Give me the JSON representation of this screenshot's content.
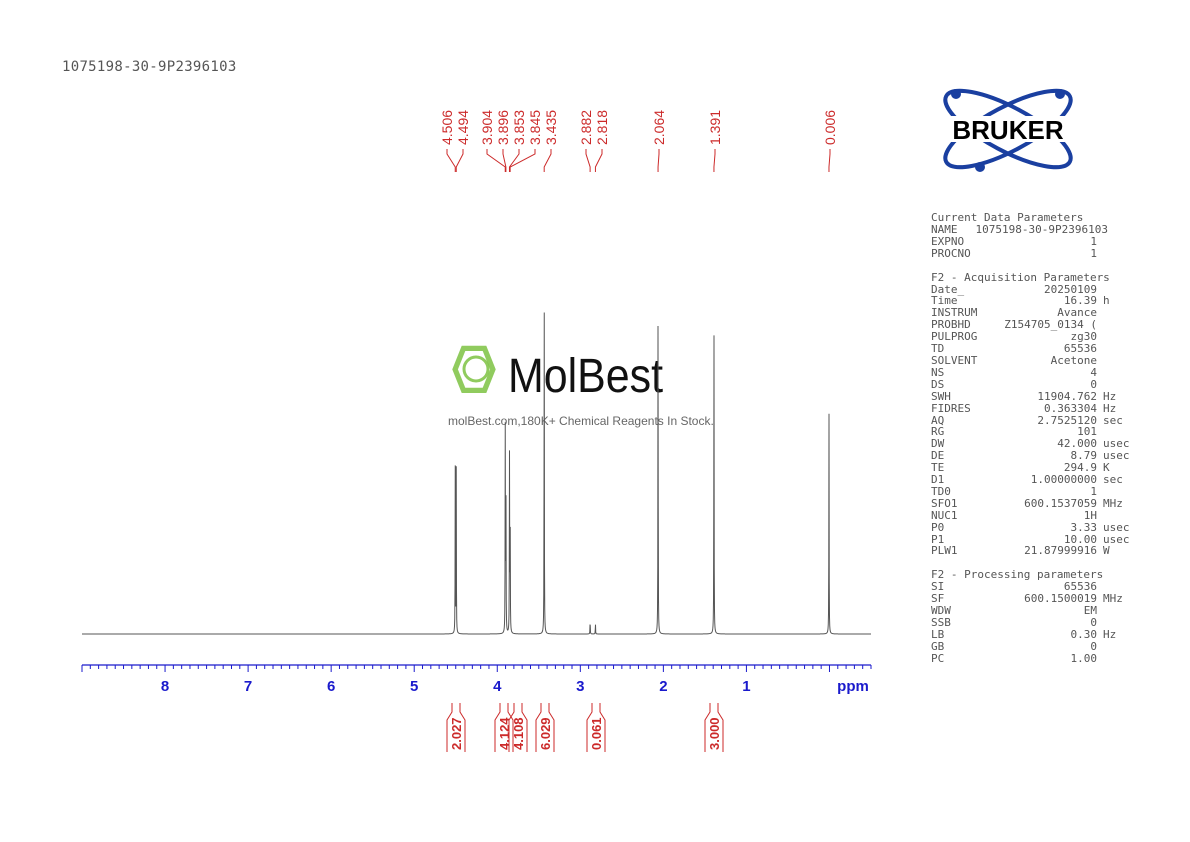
{
  "sample_name": "1075198-30-9P2396103",
  "logo": {
    "text": "BRUKER",
    "color": "#1a3fa0"
  },
  "watermark": {
    "brand": "MolBest",
    "tagline": "molBest.com,180K+ Chemical Reagents In Stock.",
    "color": "#7dc242"
  },
  "parameters": {
    "current_title": "Current Data Parameters",
    "current": [
      [
        "NAME",
        "1075198-30-9P2396103",
        ""
      ],
      [
        "EXPNO",
        "1",
        ""
      ],
      [
        "PROCNO",
        "1",
        ""
      ]
    ],
    "acq_title": "F2 - Acquisition Parameters",
    "acq": [
      [
        "Date_",
        "20250109",
        ""
      ],
      [
        "Time",
        "16.39",
        "h"
      ],
      [
        "INSTRUM",
        "Avance",
        ""
      ],
      [
        "PROBHD",
        "Z154705_0134 (",
        ""
      ],
      [
        "PULPROG",
        "zg30",
        ""
      ],
      [
        "TD",
        "65536",
        ""
      ],
      [
        "SOLVENT",
        "Acetone",
        ""
      ],
      [
        "NS",
        "4",
        ""
      ],
      [
        "DS",
        "0",
        ""
      ],
      [
        "SWH",
        "11904.762",
        "Hz"
      ],
      [
        "FIDRES",
        "0.363304",
        "Hz"
      ],
      [
        "AQ",
        "2.7525120",
        "sec"
      ],
      [
        "RG",
        "101",
        ""
      ],
      [
        "DW",
        "42.000",
        "usec"
      ],
      [
        "DE",
        "8.79",
        "usec"
      ],
      [
        "TE",
        "294.9",
        "K"
      ],
      [
        "D1",
        "1.00000000",
        "sec"
      ],
      [
        "TD0",
        "1",
        ""
      ],
      [
        "SFO1",
        "600.1537059",
        "MHz"
      ],
      [
        "NUC1",
        "1H",
        ""
      ],
      [
        "P0",
        "3.33",
        "usec"
      ],
      [
        "P1",
        "10.00",
        "usec"
      ],
      [
        "PLW1",
        "21.87999916",
        "W"
      ]
    ],
    "proc_title": "F2 - Processing parameters",
    "proc": [
      [
        "SI",
        "65536",
        ""
      ],
      [
        "SF",
        "600.1500019",
        "MHz"
      ],
      [
        "WDW",
        "EM",
        ""
      ],
      [
        "SSB",
        "0",
        ""
      ],
      [
        "LB",
        "0.30",
        "Hz"
      ],
      [
        "GB",
        "0",
        ""
      ],
      [
        "PC",
        "1.00",
        ""
      ]
    ]
  },
  "chart_data": {
    "type": "line",
    "xlabel": "ppm",
    "xlim": [
      9.0,
      -0.5
    ],
    "x_reversed": true,
    "xticks": [
      "8",
      "7",
      "6",
      "5",
      "4",
      "3",
      "2",
      "1"
    ],
    "xtick_values": [
      8,
      7,
      6,
      5,
      4,
      3,
      2,
      1
    ],
    "colors": {
      "spectrum": "#555555",
      "axis": "#1a1acc",
      "annotation": "#cc2a2a"
    },
    "peaks": [
      {
        "ppm": 4.506,
        "label": "4.506",
        "intensity": 0.44
      },
      {
        "ppm": 4.494,
        "label": "4.494",
        "intensity": 0.44
      },
      {
        "ppm": 3.904,
        "label": "3.904",
        "intensity": 0.54
      },
      {
        "ppm": 3.896,
        "label": "3.896",
        "intensity": 0.5
      },
      {
        "ppm": 3.853,
        "label": "3.853",
        "intensity": 0.48
      },
      {
        "ppm": 3.845,
        "label": "3.845",
        "intensity": 0.42
      },
      {
        "ppm": 3.435,
        "label": "3.435",
        "intensity": 1.0
      },
      {
        "ppm": 2.882,
        "label": "2.882",
        "intensity": 0.04
      },
      {
        "ppm": 2.818,
        "label": "2.818",
        "intensity": 0.03
      },
      {
        "ppm": 2.064,
        "label": "2.064",
        "intensity": 0.92
      },
      {
        "ppm": 1.391,
        "label": "1.391",
        "intensity": 0.89
      },
      {
        "ppm": 0.006,
        "label": "0.006",
        "intensity": 0.6
      }
    ],
    "integrals": [
      {
        "ppm": 4.5,
        "value": "2.027"
      },
      {
        "ppm": 3.92,
        "value": "4.124"
      },
      {
        "ppm": 3.76,
        "value": "4.108"
      },
      {
        "ppm": 3.43,
        "value": "6.029"
      },
      {
        "ppm": 2.85,
        "value": "0.061"
      },
      {
        "ppm": 1.39,
        "value": "3.000"
      }
    ]
  }
}
